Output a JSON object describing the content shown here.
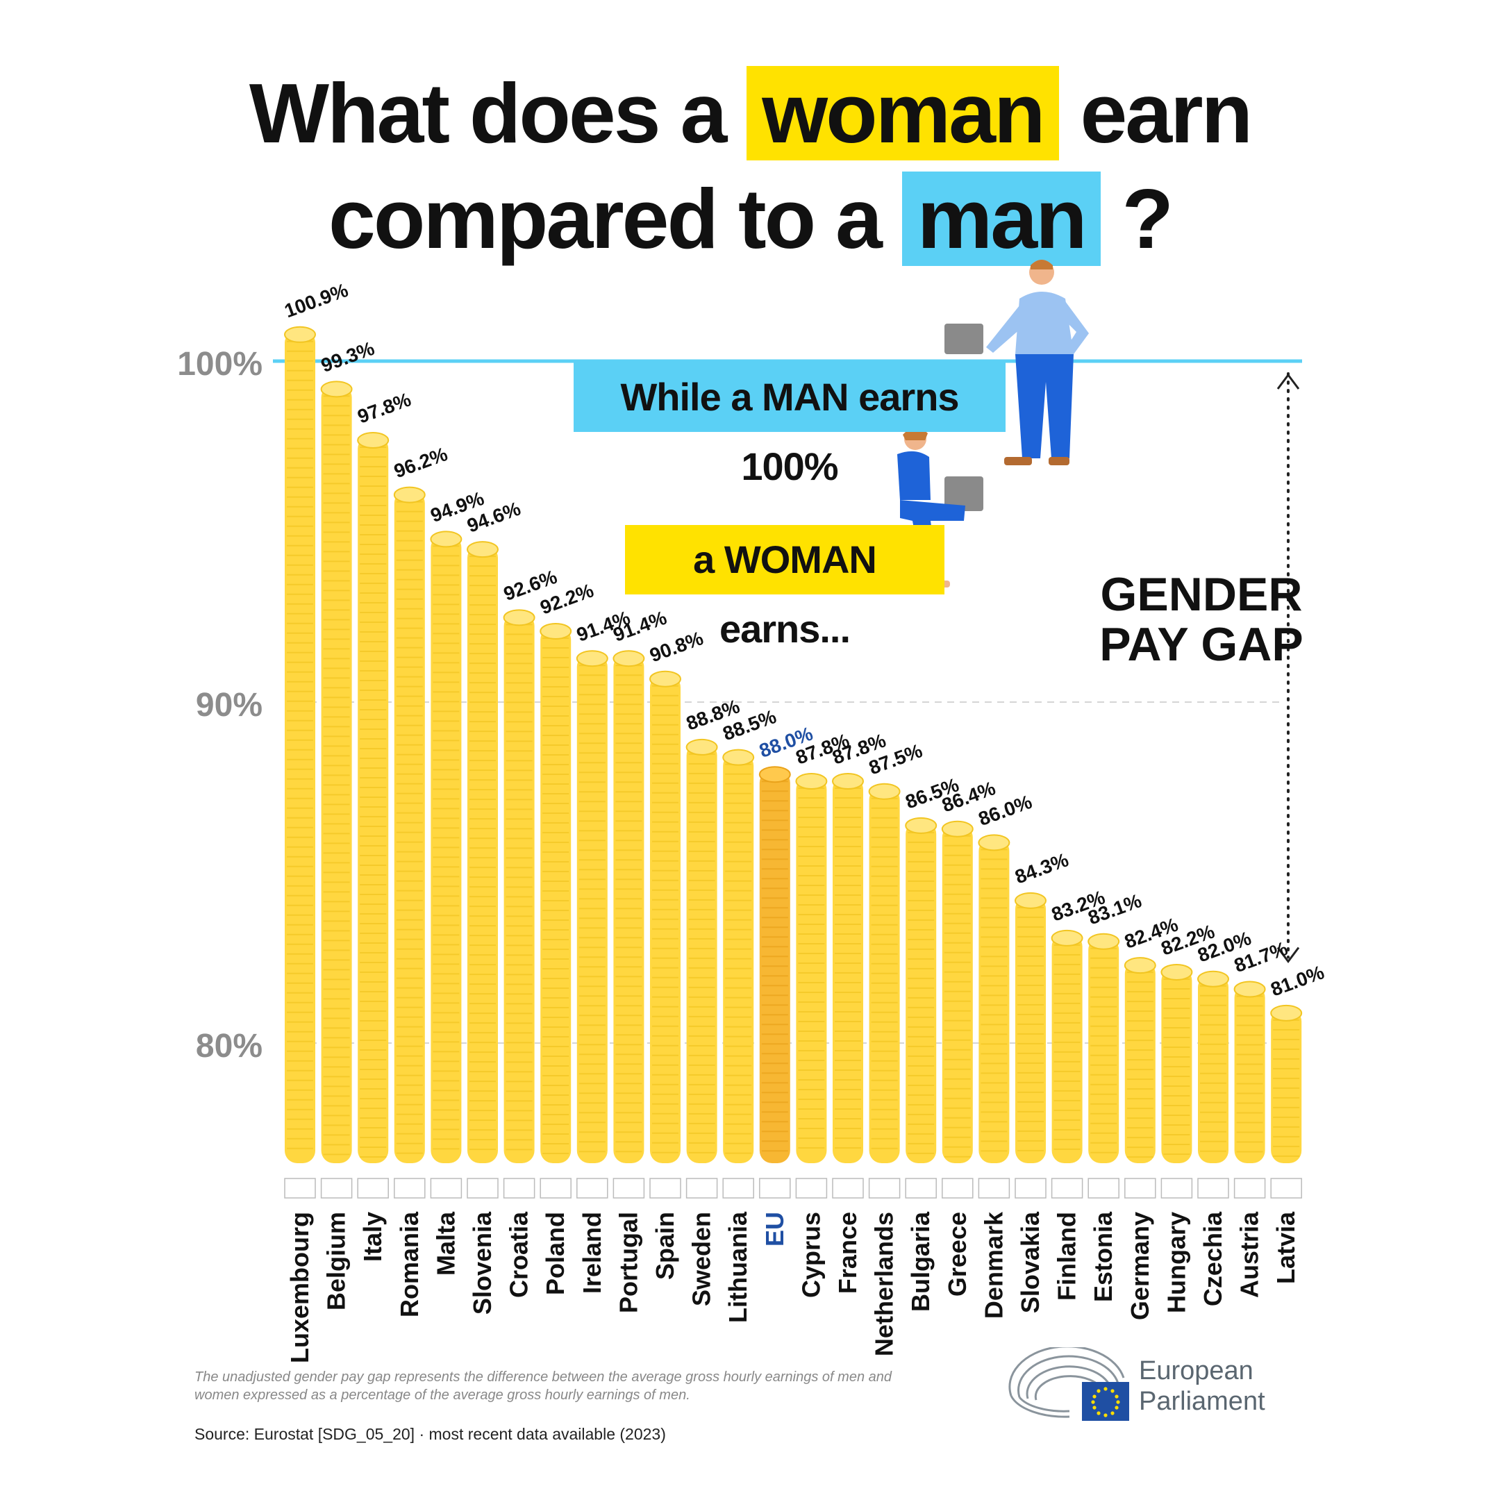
{
  "title": {
    "line1_pre": "What does a ",
    "line1_highlight": "woman",
    "line1_post": " earn",
    "line2_pre": "compared to a ",
    "line2_highlight": "man",
    "line2_post": " ?"
  },
  "callouts": {
    "man": "While a MAN earns 100%",
    "woman": "a WOMAN earns...",
    "gap_line1": "GENDER",
    "gap_line2": "PAY GAP"
  },
  "footnote": "The unadjusted gender pay gap represents the difference between the average gross hourly earnings of men and women expressed as a percentage of the average gross hourly earnings of men.",
  "source": "Source: Eurostat [SDG_05_20] · most recent data available (2023)",
  "branding": {
    "line1": "European",
    "line2": "Parliament"
  },
  "colors": {
    "coin": "#ffd740",
    "coin_highlight": "#ffe680",
    "eu_coin": "#f7b733",
    "reference_line": "#5bd0f5",
    "eu_label": "#1f4fa3",
    "axis_label": "#8c8c8c"
  },
  "chart_data": {
    "type": "bar",
    "title": "What does a woman earn compared to a man ?",
    "ylim": [
      76.5,
      102
    ],
    "yticks": [
      80,
      90,
      100
    ],
    "ytick_labels": [
      "80%",
      "90%",
      "100%"
    ],
    "reference_line": 100,
    "grid": true,
    "highlight_category": "EU",
    "categories": [
      "Luxembourg",
      "Belgium",
      "Italy",
      "Romania",
      "Malta",
      "Slovenia",
      "Croatia",
      "Poland",
      "Ireland",
      "Portugal",
      "Spain",
      "Sweden",
      "Lithuania",
      "EU",
      "Cyprus",
      "France",
      "Netherlands",
      "Bulgaria",
      "Greece",
      "Denmark",
      "Slovakia",
      "Finland",
      "Estonia",
      "Germany",
      "Hungary",
      "Czechia",
      "Austria",
      "Latvia"
    ],
    "values": [
      100.9,
      99.3,
      97.8,
      96.2,
      94.9,
      94.6,
      92.6,
      92.2,
      91.4,
      91.4,
      90.8,
      88.8,
      88.5,
      88.0,
      87.8,
      87.8,
      87.5,
      86.5,
      86.4,
      86.0,
      84.3,
      83.2,
      83.1,
      82.4,
      82.2,
      82.0,
      81.7,
      81.0
    ],
    "value_labels": [
      "100.9%",
      "99.3%",
      "97.8%",
      "96.2%",
      "94.9%",
      "94.6%",
      "92.6%",
      "92.2%",
      "91.4%",
      "91.4%",
      "90.8%",
      "88.8%",
      "88.5%",
      "88.0%",
      "87.8%",
      "87.8%",
      "87.5%",
      "86.5%",
      "86.4%",
      "86.0%",
      "84.3%",
      "83.2%",
      "83.1%",
      "82.4%",
      "82.2%",
      "82.0%",
      "81.7%",
      "81.0%"
    ]
  }
}
